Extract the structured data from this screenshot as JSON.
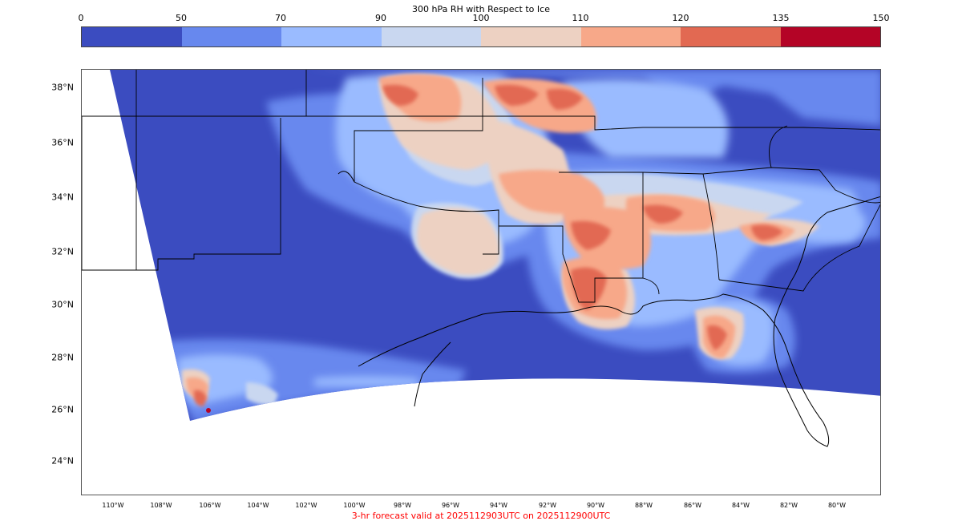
{
  "colorbar": {
    "title": "300 hPa RH with Respect to Ice",
    "ticks": [
      "0",
      "50",
      "70",
      "90",
      "100",
      "110",
      "120",
      "135",
      "150"
    ],
    "colors": [
      "#3b4cc0",
      "#6788ee",
      "#9abbff",
      "#c9d7f0",
      "#edd1c2",
      "#f7a889",
      "#e26952",
      "#b40426"
    ]
  },
  "lat_labels": [
    "38°N",
    "36°N",
    "34°N",
    "32°N",
    "30°N",
    "28°N",
    "26°N",
    "24°N"
  ],
  "lon_labels": [
    "110°W",
    "108°W",
    "106°W",
    "104°W",
    "102°W",
    "100°W",
    "98°W",
    "96°W",
    "94°W",
    "92°W",
    "90°W",
    "88°W",
    "86°W",
    "84°W",
    "82°W",
    "80°W"
  ],
  "footer": {
    "text": "3-hr forecast valid at 2025112903UTC on 2025112900UTC",
    "color": "#ff0000"
  }
}
